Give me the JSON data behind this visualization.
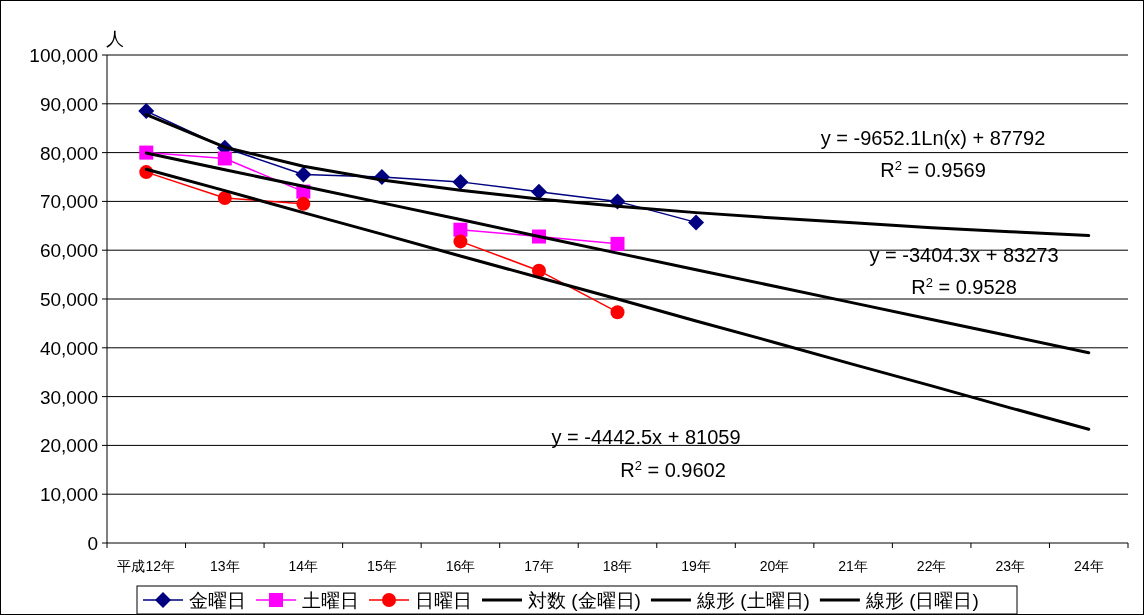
{
  "chart_data": {
    "type": "line",
    "ylabel": "人",
    "categories": [
      "平成12年",
      "13年",
      "14年",
      "15年",
      "16年",
      "17年",
      "18年",
      "19年",
      "20年",
      "21年",
      "22年",
      "23年",
      "24年"
    ],
    "series": [
      {
        "name": "金曜日",
        "color": "#000080",
        "marker": "diamond",
        "values": [
          88500,
          81000,
          75500,
          75000,
          74000,
          72000,
          70000,
          65700,
          null,
          null,
          null,
          null,
          null
        ]
      },
      {
        "name": "土曜日",
        "color": "#ff00ff",
        "marker": "square",
        "values": [
          80000,
          78800,
          72000,
          null,
          64200,
          62800,
          61300,
          null,
          null,
          null,
          null,
          null,
          null
        ]
      },
      {
        "name": "日曜日",
        "color": "#ff0000",
        "marker": "circle",
        "values": [
          76000,
          70700,
          69500,
          null,
          61800,
          55800,
          47300,
          null,
          null,
          null,
          null,
          null,
          null
        ]
      },
      {
        "name": "対数 (金曜日)",
        "color": "#000000",
        "marker": "none",
        "values": [
          87800,
          81100,
          77200,
          74400,
          72300,
          70500,
          69000,
          67700,
          66600,
          65600,
          64600,
          63800,
          63000
        ]
      },
      {
        "name": "線形 (土曜日)",
        "color": "#000000",
        "marker": "none",
        "values": [
          79900,
          76500,
          73100,
          69700,
          66300,
          62800,
          59400,
          56000,
          52600,
          49200,
          45800,
          42400,
          39000
        ]
      },
      {
        "name": "線形 (日曜日)",
        "color": "#000000",
        "marker": "none",
        "values": [
          76600,
          72200,
          67700,
          63300,
          58800,
          54400,
          50000,
          45500,
          41100,
          36600,
          32200,
          27700,
          23300
        ]
      }
    ],
    "ylim": [
      0,
      100000
    ],
    "yticks": [
      0,
      {
        "value": 10000,
        "label": "10,000"
      },
      {
        "value": 20000,
        "label": "20,000"
      },
      {
        "value": 30000,
        "label": "30,000"
      },
      {
        "value": 40000,
        "label": "40,000"
      },
      {
        "value": 50000,
        "label": "50,000"
      },
      {
        "value": 60000,
        "label": "60,000"
      },
      {
        "value": 70000,
        "label": "70,000"
      },
      {
        "value": 80000,
        "label": "80,000"
      },
      {
        "value": 90000,
        "label": "90,000"
      },
      {
        "value": 100000,
        "label": "100,000"
      }
    ],
    "grid": "y",
    "legend": "bottom",
    "annotations": [
      "y = -9652.1Ln(x) + 87792",
      "R$^{2}$ = 0.9569",
      "y = -3404.3x + 83273",
      "R$^{2}$ = 0.9528",
      "y = -4442.5x + 81059",
      "R$^{2}$ = 0.9602"
    ]
  }
}
